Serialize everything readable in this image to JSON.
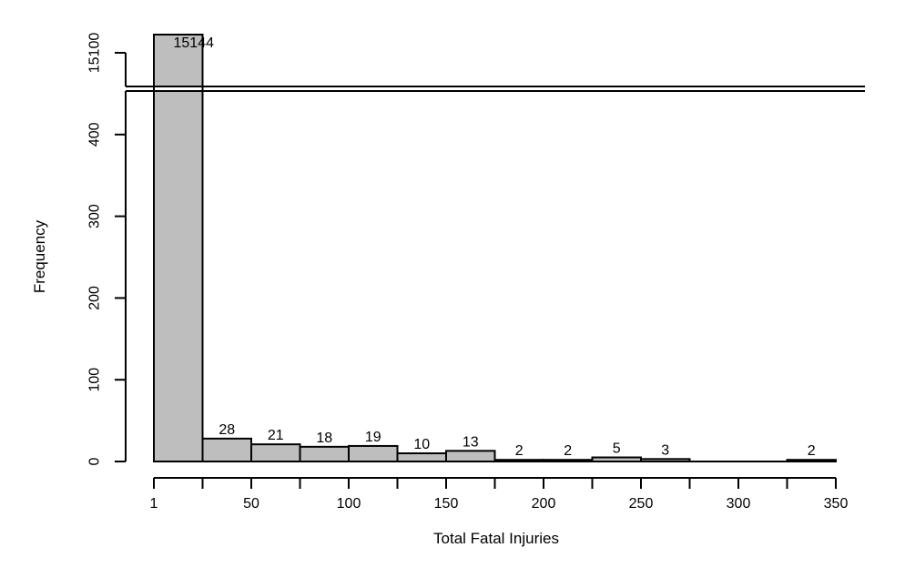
{
  "chart_data": {
    "type": "bar",
    "xlabel": "Total Fatal Injuries",
    "ylabel": "Frequency",
    "x_ticks": [
      1,
      50,
      100,
      150,
      200,
      250,
      300,
      350
    ],
    "y_ticks_lower": [
      0,
      100,
      200,
      300,
      400
    ],
    "y_ticks_upper": [
      15100
    ],
    "y_break": [
      450,
      15100
    ],
    "bin_width": 25,
    "bins": [
      {
        "start": 0,
        "end": 25,
        "value": 15144,
        "label": "15144"
      },
      {
        "start": 25,
        "end": 50,
        "value": 28,
        "label": "28"
      },
      {
        "start": 50,
        "end": 75,
        "value": 21,
        "label": "21"
      },
      {
        "start": 75,
        "end": 100,
        "value": 18,
        "label": "18"
      },
      {
        "start": 100,
        "end": 125,
        "value": 19,
        "label": "19"
      },
      {
        "start": 125,
        "end": 150,
        "value": 10,
        "label": "10"
      },
      {
        "start": 150,
        "end": 175,
        "value": 13,
        "label": "13"
      },
      {
        "start": 175,
        "end": 200,
        "value": 2,
        "label": "2"
      },
      {
        "start": 200,
        "end": 225,
        "value": 2,
        "label": "2"
      },
      {
        "start": 225,
        "end": 250,
        "value": 5,
        "label": "5"
      },
      {
        "start": 250,
        "end": 275,
        "value": 3,
        "label": "3"
      },
      {
        "start": 275,
        "end": 300,
        "value": 0,
        "label": ""
      },
      {
        "start": 300,
        "end": 325,
        "value": 0,
        "label": ""
      },
      {
        "start": 325,
        "end": 350,
        "value": 2,
        "label": "2"
      }
    ],
    "bar_color": "#bebebe",
    "grid": false,
    "legend": "none"
  }
}
